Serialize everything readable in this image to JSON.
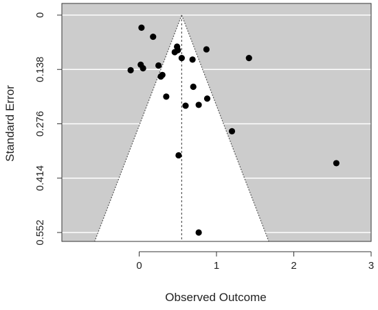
{
  "chart_data": {
    "type": "scatter",
    "subtype": "funnel",
    "title": "",
    "xlabel": "Observed Outcome",
    "ylabel": "Standard Error",
    "xlim": [
      -1.0,
      3.0
    ],
    "ylim": [
      0.552,
      0
    ],
    "y_reversed": true,
    "x_ticks": [
      0,
      1,
      2,
      3
    ],
    "x_tick_labels": [
      "0",
      "1",
      "2",
      "3"
    ],
    "y_ticks": [
      0,
      0.138,
      0.276,
      0.414,
      0.552
    ],
    "y_tick_labels": [
      "0",
      "0.138",
      "0.276",
      "0.414",
      "0.552"
    ],
    "grid": true,
    "funnel_center": 0.55,
    "funnel_multiplier": 1.96,
    "colors": {
      "panel_background": "#cccccc",
      "funnel_fill": "#ffffff",
      "grid": "#ffffff",
      "funnel_lines": "#555555",
      "points": "#000000",
      "axis": "#333333",
      "text": "#222222"
    },
    "points": [
      {
        "x": 0.03,
        "y": 0.032
      },
      {
        "x": 0.18,
        "y": 0.055
      },
      {
        "x": 0.49,
        "y": 0.08
      },
      {
        "x": 0.87,
        "y": 0.087
      },
      {
        "x": 0.5,
        "y": 0.089
      },
      {
        "x": 0.46,
        "y": 0.094
      },
      {
        "x": 0.55,
        "y": 0.109
      },
      {
        "x": 0.69,
        "y": 0.113
      },
      {
        "x": 1.42,
        "y": 0.109
      },
      {
        "x": 0.25,
        "y": 0.128
      },
      {
        "x": 0.02,
        "y": 0.126
      },
      {
        "x": 0.05,
        "y": 0.135
      },
      {
        "x": -0.11,
        "y": 0.14
      },
      {
        "x": 0.3,
        "y": 0.152
      },
      {
        "x": 0.28,
        "y": 0.156
      },
      {
        "x": 0.7,
        "y": 0.182
      },
      {
        "x": 0.35,
        "y": 0.207
      },
      {
        "x": 0.88,
        "y": 0.212
      },
      {
        "x": 0.6,
        "y": 0.23
      },
      {
        "x": 0.77,
        "y": 0.228
      },
      {
        "x": 1.2,
        "y": 0.295
      },
      {
        "x": 0.51,
        "y": 0.356
      },
      {
        "x": 2.55,
        "y": 0.376
      },
      {
        "x": 0.77,
        "y": 0.552
      }
    ]
  }
}
